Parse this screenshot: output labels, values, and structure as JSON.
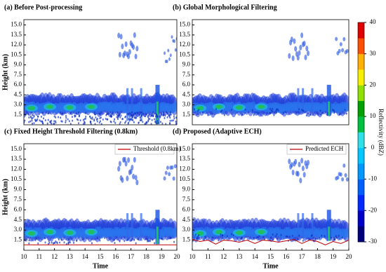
{
  "chart_data": [
    {
      "type": "radar",
      "title": "(a) Before Post-processing",
      "ylabel": "Height (km)",
      "xlim": [
        10,
        20
      ],
      "ylim": [
        0,
        15.8
      ],
      "yticks": [
        {
          "value": 1.5,
          "label": "1.5"
        },
        {
          "value": 3,
          "label": "3.0"
        },
        {
          "value": 4.5,
          "label": "4.5"
        },
        {
          "value": 6,
          "label": "6.0"
        },
        {
          "value": 7.5,
          "label": "7.5"
        },
        {
          "value": 9,
          "label": "9.0"
        },
        {
          "value": 10.5,
          "label": "10.5"
        },
        {
          "value": 12,
          "label": "12.0"
        },
        {
          "value": 13.5,
          "label": "13.5"
        },
        {
          "value": 15,
          "label": "15.0"
        }
      ]
    },
    {
      "type": "radar",
      "title": "(b) Global Morphological Filtering",
      "xlim": [
        10,
        20
      ],
      "ylim": [
        0,
        15.8
      ],
      "yticks": [
        {
          "value": 1.5,
          "label": "1.5"
        },
        {
          "value": 3,
          "label": "3.0"
        },
        {
          "value": 4.5,
          "label": "4.5"
        },
        {
          "value": 6,
          "label": "6.0"
        },
        {
          "value": 7.5,
          "label": "7.5"
        },
        {
          "value": 9,
          "label": "9.0"
        },
        {
          "value": 10.5,
          "label": "10.5"
        },
        {
          "value": 12,
          "label": "12.0"
        },
        {
          "value": 13.5,
          "label": "13.5"
        },
        {
          "value": 15,
          "label": "15.0"
        }
      ]
    },
    {
      "type": "radar",
      "title": "(c) Fixed Height Threshold Filtering (0.8km)",
      "ylabel": "Height (km)",
      "xlabel": "Time",
      "xlim": [
        10,
        20
      ],
      "ylim": [
        0,
        15.8
      ],
      "xticks": [
        10,
        11,
        12,
        13,
        14,
        15,
        16,
        17,
        18,
        19,
        20
      ],
      "yticks": [
        {
          "value": 1.5,
          "label": "1.5"
        },
        {
          "value": 3,
          "label": "3.0"
        },
        {
          "value": 4.5,
          "label": "4.5"
        },
        {
          "value": 6,
          "label": "6.0"
        },
        {
          "value": 7.5,
          "label": "7.5"
        },
        {
          "value": 9,
          "label": "9.0"
        },
        {
          "value": 10.5,
          "label": "10.5"
        },
        {
          "value": 12,
          "label": "12.0"
        },
        {
          "value": 13.5,
          "label": "13.5"
        },
        {
          "value": 15,
          "label": "15.0"
        }
      ],
      "series": [
        {
          "name": "Threshold (0.8km)",
          "color": "#c00000",
          "x": [
            10,
            20
          ],
          "values": [
            0.8,
            0.8
          ]
        }
      ]
    },
    {
      "type": "radar",
      "title": "(d) Proposed (Adaptive ECH)",
      "xlabel": "Time",
      "xlim": [
        10,
        20
      ],
      "ylim": [
        0,
        15.8
      ],
      "xticks": [
        10,
        11,
        12,
        13,
        14,
        15,
        16,
        17,
        18,
        19,
        20
      ],
      "yticks": [
        {
          "value": 1.5,
          "label": "1.5"
        },
        {
          "value": 3,
          "label": "3.0"
        },
        {
          "value": 4.5,
          "label": "4.5"
        },
        {
          "value": 6,
          "label": "6.0"
        },
        {
          "value": 7.5,
          "label": "7.5"
        },
        {
          "value": 9,
          "label": "9.0"
        },
        {
          "value": 10.5,
          "label": "10.5"
        },
        {
          "value": 12,
          "label": "12.0"
        },
        {
          "value": 13.5,
          "label": "13.5"
        },
        {
          "value": 15,
          "label": "15.0"
        }
      ],
      "series": [
        {
          "name": "Predicted ECH",
          "color": "#c00000",
          "x": [
            10,
            10.5,
            11,
            11.5,
            12,
            12.5,
            13,
            13.5,
            14,
            14.5,
            15,
            15.5,
            16,
            16.5,
            17,
            17.5,
            18,
            18.5,
            19,
            19.5,
            20
          ],
          "values": [
            1.6,
            1.3,
            1.5,
            0.9,
            1.5,
            1.4,
            1.2,
            1.5,
            1.0,
            1.5,
            1.4,
            1.2,
            1.4,
            1.6,
            1.0,
            1.5,
            1.3,
            0.8,
            1.3,
            1.0,
            1.5
          ]
        }
      ]
    },
    {
      "type": "colorbar",
      "label": "Reflectivity (dBZ)",
      "ylim": [
        -30,
        40
      ],
      "yticks": [
        -30,
        -20,
        -10,
        0,
        10,
        20,
        30,
        40
      ],
      "colors": [
        "#00007a",
        "#0000c8",
        "#0028ff",
        "#0060ff",
        "#0098ff",
        "#00c8ff",
        "#30e0e8",
        "#00c040",
        "#00a000",
        "#90e000",
        "#f8f000",
        "#ffb000",
        "#ff5000",
        "#e00000"
      ]
    }
  ]
}
